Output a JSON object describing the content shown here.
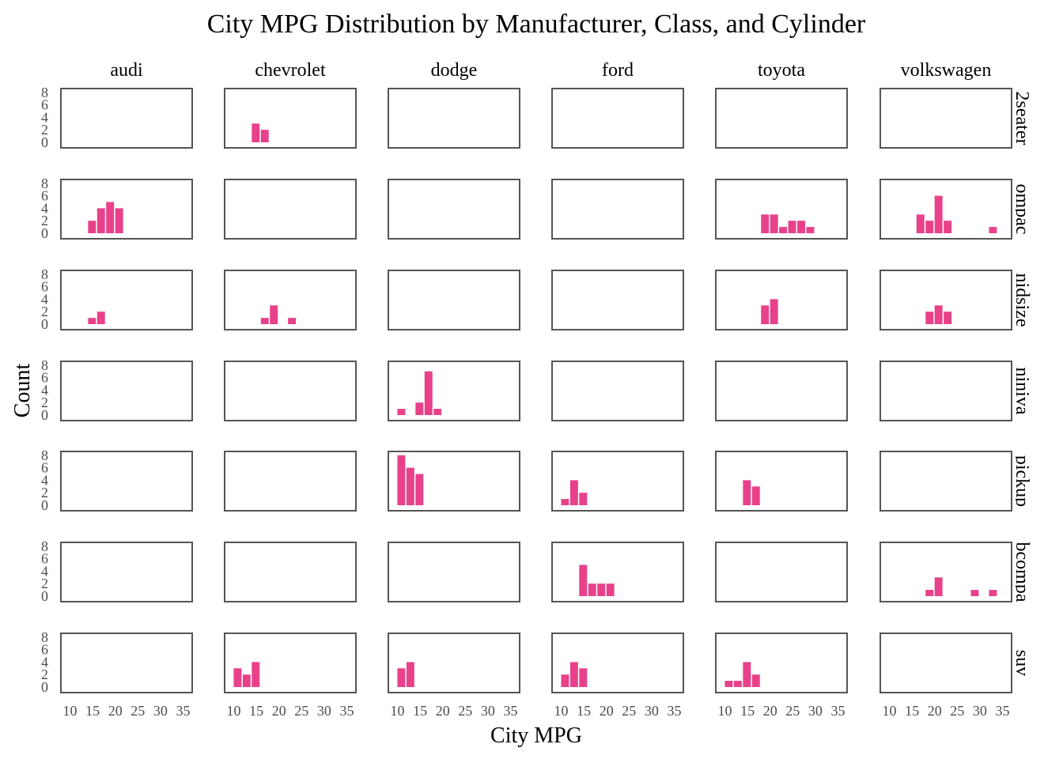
{
  "chart_data": {
    "type": "bar",
    "title": "City MPG Distribution by Manufacturer, Class, and Cylinder",
    "xlabel": "City MPG",
    "ylabel": "Count",
    "columns": [
      "audi",
      "chevrolet",
      "dodge",
      "ford",
      "toyota",
      "volkswagen"
    ],
    "rows": [
      "2seater",
      "compact",
      "midsize",
      "minivan",
      "pickup",
      "subcompact",
      "suv"
    ],
    "row_labels_shown": [
      "2seater",
      "ompac",
      "nidsize",
      "niniva",
      "pickup",
      "bcompa",
      "suv"
    ],
    "xlim": [
      8,
      37
    ],
    "ylim": [
      0,
      8
    ],
    "x_ticks": [
      10,
      15,
      20,
      25,
      30,
      35
    ],
    "y_ticks": [
      0,
      2,
      4,
      6,
      8
    ],
    "bin_width": 2,
    "bar_color": "#E8418A",
    "panels": [
      {
        "col": "chevrolet",
        "row": "2seater",
        "bins": [
          {
            "x": 15,
            "count": 3
          },
          {
            "x": 17,
            "count": 2
          }
        ]
      },
      {
        "col": "audi",
        "row": "compact",
        "bins": [
          {
            "x": 15,
            "count": 2
          },
          {
            "x": 17,
            "count": 4
          },
          {
            "x": 19,
            "count": 5
          },
          {
            "x": 21,
            "count": 4
          }
        ]
      },
      {
        "col": "toyota",
        "row": "compact",
        "bins": [
          {
            "x": 19,
            "count": 3
          },
          {
            "x": 21,
            "count": 3
          },
          {
            "x": 23,
            "count": 1
          },
          {
            "x": 25,
            "count": 2
          },
          {
            "x": 27,
            "count": 2
          },
          {
            "x": 29,
            "count": 1
          }
        ]
      },
      {
        "col": "volkswagen",
        "row": "compact",
        "bins": [
          {
            "x": 17,
            "count": 3
          },
          {
            "x": 19,
            "count": 2
          },
          {
            "x": 21,
            "count": 6
          },
          {
            "x": 23,
            "count": 2
          },
          {
            "x": 33,
            "count": 1
          }
        ]
      },
      {
        "col": "audi",
        "row": "midsize",
        "bins": [
          {
            "x": 15,
            "count": 1
          },
          {
            "x": 17,
            "count": 2
          }
        ]
      },
      {
        "col": "chevrolet",
        "row": "midsize",
        "bins": [
          {
            "x": 17,
            "count": 1
          },
          {
            "x": 19,
            "count": 3
          },
          {
            "x": 23,
            "count": 1
          }
        ]
      },
      {
        "col": "toyota",
        "row": "midsize",
        "bins": [
          {
            "x": 19,
            "count": 3
          },
          {
            "x": 21,
            "count": 4
          }
        ]
      },
      {
        "col": "volkswagen",
        "row": "midsize",
        "bins": [
          {
            "x": 19,
            "count": 2
          },
          {
            "x": 21,
            "count": 3
          },
          {
            "x": 23,
            "count": 2
          }
        ]
      },
      {
        "col": "dodge",
        "row": "minivan",
        "bins": [
          {
            "x": 11,
            "count": 1
          },
          {
            "x": 15,
            "count": 2
          },
          {
            "x": 17,
            "count": 7
          },
          {
            "x": 19,
            "count": 1
          }
        ]
      },
      {
        "col": "dodge",
        "row": "pickup",
        "bins": [
          {
            "x": 11,
            "count": 8
          },
          {
            "x": 13,
            "count": 6
          },
          {
            "x": 15,
            "count": 5
          }
        ]
      },
      {
        "col": "ford",
        "row": "pickup",
        "bins": [
          {
            "x": 11,
            "count": 1
          },
          {
            "x": 13,
            "count": 4
          },
          {
            "x": 15,
            "count": 2
          }
        ]
      },
      {
        "col": "toyota",
        "row": "pickup",
        "bins": [
          {
            "x": 15,
            "count": 4
          },
          {
            "x": 17,
            "count": 3
          }
        ]
      },
      {
        "col": "ford",
        "row": "subcompact",
        "bins": [
          {
            "x": 15,
            "count": 5
          },
          {
            "x": 17,
            "count": 2
          },
          {
            "x": 19,
            "count": 2
          },
          {
            "x": 21,
            "count": 2
          }
        ]
      },
      {
        "col": "volkswagen",
        "row": "subcompact",
        "bins": [
          {
            "x": 19,
            "count": 1
          },
          {
            "x": 21,
            "count": 3
          },
          {
            "x": 29,
            "count": 1
          },
          {
            "x": 33,
            "count": 1
          }
        ]
      },
      {
        "col": "chevrolet",
        "row": "suv",
        "bins": [
          {
            "x": 11,
            "count": 3
          },
          {
            "x": 13,
            "count": 2
          },
          {
            "x": 15,
            "count": 4
          }
        ]
      },
      {
        "col": "dodge",
        "row": "suv",
        "bins": [
          {
            "x": 11,
            "count": 3
          },
          {
            "x": 13,
            "count": 4
          }
        ]
      },
      {
        "col": "ford",
        "row": "suv",
        "bins": [
          {
            "x": 11,
            "count": 2
          },
          {
            "x": 13,
            "count": 4
          },
          {
            "x": 15,
            "count": 3
          }
        ]
      },
      {
        "col": "toyota",
        "row": "suv",
        "bins": [
          {
            "x": 11,
            "count": 1
          },
          {
            "x": 13,
            "count": 1
          },
          {
            "x": 15,
            "count": 4
          },
          {
            "x": 17,
            "count": 2
          }
        ]
      }
    ]
  }
}
